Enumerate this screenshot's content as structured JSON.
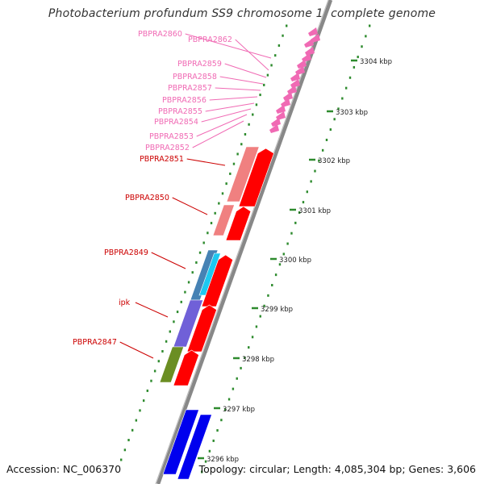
{
  "title": "Photobacterium profundum SS9 chromosome 1, complete genome",
  "footer": {
    "accession": "Accession: NC_006370",
    "summary": "Topology: circular; Length: 4,085,304 bp; Genes: 3,606"
  },
  "scale_ticks": [
    {
      "label": "3304 kbp"
    },
    {
      "label": "3303 kbp"
    },
    {
      "label": "3302 kbp"
    },
    {
      "label": "3301 kbp"
    },
    {
      "label": "3300 kbp"
    },
    {
      "label": "3299 kbp"
    },
    {
      "label": "3298 kbp"
    },
    {
      "label": "3297 kbp"
    },
    {
      "label": "3296 kbp"
    }
  ],
  "gene_labels": [
    {
      "text": "PBPRA2860",
      "color": "#f06ab4"
    },
    {
      "text": "PBPRA2862",
      "color": "#f06ab4"
    },
    {
      "text": "PBPRA2859",
      "color": "#f06ab4"
    },
    {
      "text": "PBPRA2858",
      "color": "#f06ab4"
    },
    {
      "text": "PBPRA2857",
      "color": "#f06ab4"
    },
    {
      "text": "PBPRA2856",
      "color": "#f06ab4"
    },
    {
      "text": "PBPRA2855",
      "color": "#f06ab4"
    },
    {
      "text": "PBPRA2854",
      "color": "#f06ab4"
    },
    {
      "text": "PBPRA2853",
      "color": "#f06ab4"
    },
    {
      "text": "PBPRA2852",
      "color": "#f06ab4"
    },
    {
      "text": "PBPRA2851",
      "color": "#cc0000"
    },
    {
      "text": "PBPRA2850",
      "color": "#cc0000"
    },
    {
      "text": "PBPRA2849",
      "color": "#cc0000"
    },
    {
      "text": "ipk",
      "color": "#cc0000"
    },
    {
      "text": "PBPRA2847",
      "color": "#cc0000"
    }
  ],
  "colors": {
    "backbone": "#888888",
    "dot_track": "#2e8b2e",
    "cds": "#ff0000",
    "cds_light": "#f08080",
    "trna": "#f06ab4",
    "blue_gene": "#0000ee",
    "cyan_gene": "#1ec8f0",
    "steel_gene": "#4682b4",
    "purple_gene": "#7060d8",
    "olive_gene": "#6b8e23",
    "tick": "#2e8b2e"
  }
}
